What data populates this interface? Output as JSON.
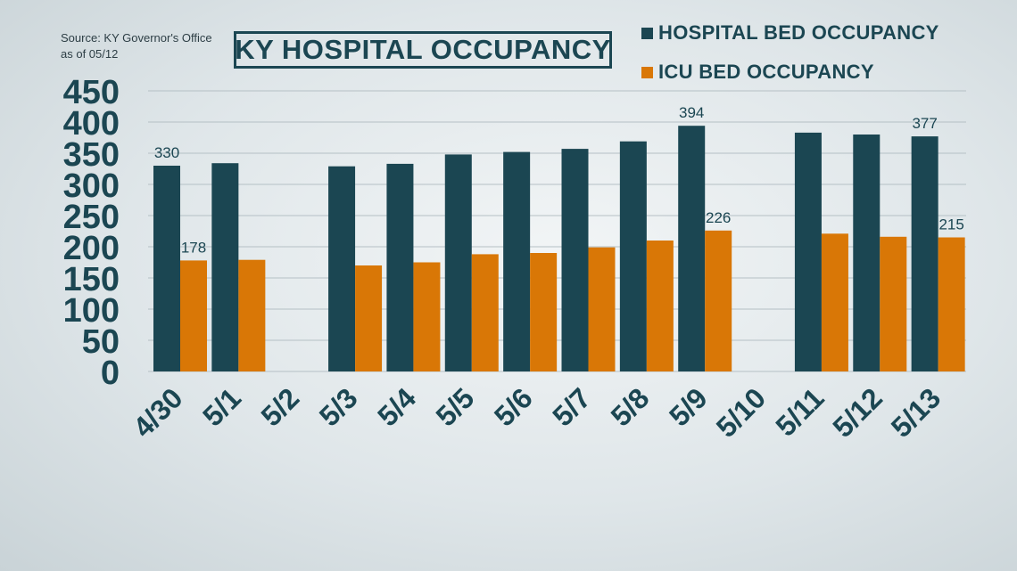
{
  "source": {
    "line1": "Source: KY Governor's Office",
    "line2": "as of 05/12"
  },
  "title": "KY HOSPITAL OCCUPANCY",
  "legend": {
    "hospital": "HOSPITAL BED OCCUPANCY",
    "icu": "ICU BED OCCUPANCY"
  },
  "colors": {
    "hospital": "#1b4652",
    "icu": "#d97706",
    "text": "#1b4652",
    "grid": "#b5c0c5"
  },
  "chart_data": {
    "type": "bar",
    "title": "KY HOSPITAL OCCUPANCY",
    "categories": [
      "4/30",
      "5/1",
      "5/2",
      "5/3",
      "5/4",
      "5/5",
      "5/6",
      "5/7",
      "5/8",
      "5/9",
      "5/10",
      "5/11",
      "5/12",
      "5/13"
    ],
    "series": [
      {
        "name": "HOSPITAL BED OCCUPANCY",
        "color": "#1b4652",
        "values": [
          330,
          334,
          null,
          329,
          333,
          348,
          352,
          357,
          369,
          394,
          null,
          383,
          380,
          377
        ]
      },
      {
        "name": "ICU BED OCCUPANCY",
        "color": "#d97706",
        "values": [
          178,
          179,
          null,
          170,
          175,
          188,
          190,
          199,
          210,
          226,
          null,
          221,
          216,
          215
        ]
      }
    ],
    "data_labels": [
      {
        "series": 0,
        "index": 0,
        "text": "330"
      },
      {
        "series": 1,
        "index": 0,
        "text": "178"
      },
      {
        "series": 0,
        "index": 9,
        "text": "394"
      },
      {
        "series": 1,
        "index": 9,
        "text": "226"
      },
      {
        "series": 0,
        "index": 13,
        "text": "377"
      },
      {
        "series": 1,
        "index": 13,
        "text": "215"
      }
    ],
    "yticks": [
      0,
      50,
      100,
      150,
      200,
      250,
      300,
      350,
      400,
      450
    ],
    "ylim": [
      0,
      450
    ],
    "grid": true,
    "legend_position": "top-right"
  }
}
